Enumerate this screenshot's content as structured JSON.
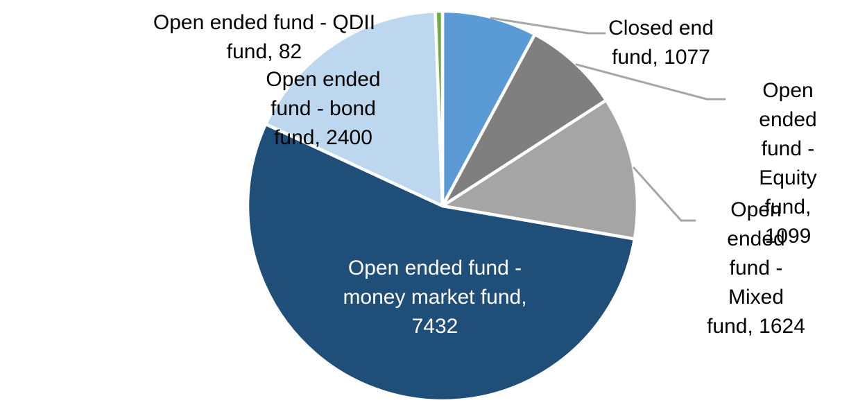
{
  "chart_data": {
    "type": "pie",
    "title": "",
    "legend_position": "none",
    "background": "#FFFFFF",
    "total": 13714,
    "start_angle_deg": 0,
    "direction": "clockwise",
    "slice_border_color": "#FFFFFF",
    "leader_line_color": "#A6A6A6",
    "label_style": "category-name-and-value-callouts",
    "slices": [
      {
        "name": "Closed end fund",
        "value": 1077,
        "color": "#5B9BD5",
        "label": "Closed end\nfund, 1077",
        "label_color": "#000000"
      },
      {
        "name": "Open ended fund - Equity fund",
        "value": 1099,
        "color": "#7F7F7F",
        "label": "Open ended\nfund - Equity\nfund, 1099",
        "label_color": "#000000"
      },
      {
        "name": "Open ended fund - Mixed fund",
        "value": 1624,
        "color": "#A5A5A5",
        "label": "Open ended\nfund - Mixed\nfund, 1624",
        "label_color": "#000000"
      },
      {
        "name": "Open ended fund - money market fund",
        "value": 7432,
        "color": "#1F4E79",
        "label": "Open ended fund -\nmoney market fund,\n7432",
        "label_color": "#FFFFFF"
      },
      {
        "name": "Open ended fund - bond fund",
        "value": 2400,
        "color": "#BDD7EE",
        "label": "Open ended\nfund - bond\nfund, 2400",
        "label_color": "#000000"
      },
      {
        "name": "Open ended fund - QDII fund",
        "value": 82,
        "color": "#70AD47",
        "label": "Open ended fund - QDII\nfund, 82",
        "label_color": "#000000"
      }
    ]
  }
}
